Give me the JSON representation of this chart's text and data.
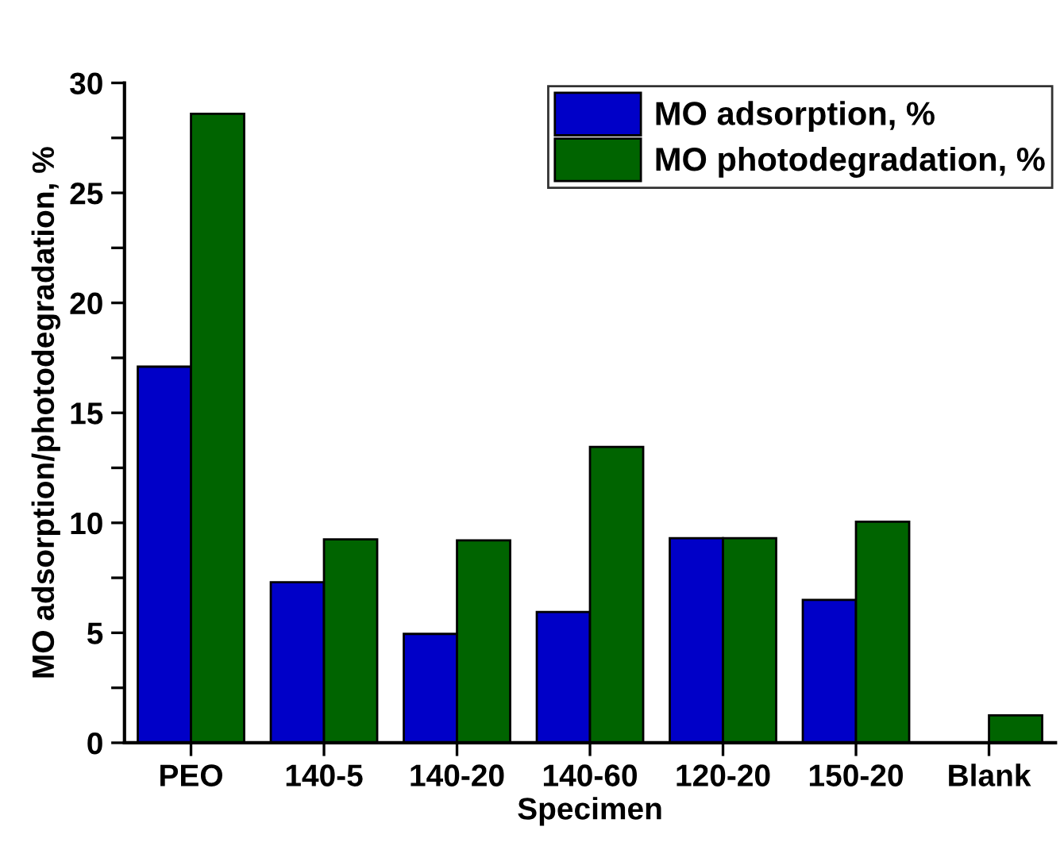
{
  "chart_data": {
    "type": "bar",
    "xlabel": "Specimen",
    "ylabel": "MO adsorption/photodegradation, %",
    "categories": [
      "PEO",
      "140-5",
      "140-20",
      "140-60",
      "120-20",
      "150-20",
      "Blank"
    ],
    "series": [
      {
        "name": "MO adsorption, %",
        "color": "#0000c8",
        "values": [
          17.1,
          7.3,
          4.95,
          5.95,
          9.3,
          6.5,
          null
        ]
      },
      {
        "name": "MO photodegradation, %",
        "color": "#006400",
        "values": [
          28.6,
          9.25,
          9.2,
          13.45,
          9.3,
          10.05,
          1.25
        ]
      }
    ],
    "ylim": [
      0,
      30
    ],
    "yticks": [
      0,
      {
        "value": 2.5,
        "label": null
      },
      5,
      {
        "value": 7.5,
        "label": null
      },
      10,
      {
        "value": 12.5,
        "label": null
      },
      15,
      {
        "value": 17.5,
        "label": null
      },
      20,
      {
        "value": 22.5,
        "label": null
      },
      25,
      {
        "value": 27.5,
        "label": null
      },
      30
    ],
    "legend": "top right",
    "grid": false
  }
}
